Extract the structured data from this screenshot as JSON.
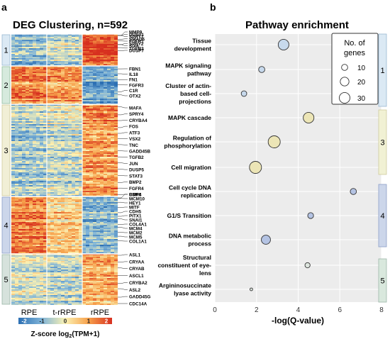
{
  "panel_a": {
    "letter": "a",
    "title": "DEG Clustering, n=592",
    "column_labels": [
      "RPE",
      "t-rRPE",
      "rRPE"
    ],
    "cluster_labels": [
      "1",
      "2",
      "3",
      "4",
      "5"
    ],
    "genes": [
      [
        "MMP9",
        "DUSP1",
        "SPRY1",
        "SMAD6",
        "FGFR1",
        "SPRY2",
        "SIX6",
        "TGFB3",
        "DUSP7"
      ],
      [
        "FBN1",
        "IL18",
        "FN1",
        "FGFR3",
        "C1R",
        "OTX2"
      ],
      [
        "MAFA",
        "SPRY4",
        "CRYBA4",
        "FOS",
        "ATF3",
        "VSX2",
        "TNC",
        "GADD45B",
        "TGFB2",
        "JUN",
        "DUSP5",
        "STAT3",
        "BMP2",
        "FGFR4",
        "BMP4"
      ],
      [
        "CDK6",
        "MCM10",
        "HEY1",
        "MITF",
        "CDH5",
        "PITX1",
        "SNAI1",
        "COL4A1",
        "MCM4",
        "MCM2",
        "MCM5",
        "COL1A1"
      ],
      [
        "ASL1",
        "CRYAA",
        "CRYAB",
        "ASCL1",
        "CRYBA2",
        "ASL2",
        "GADD45G",
        "CDC14A"
      ]
    ],
    "colorbar": {
      "ticks": [
        "-2",
        "-1",
        "0",
        "1",
        "2"
      ],
      "label_prefix": "Z-score log",
      "label_sub": "2",
      "label_suffix": "(TPM+1)",
      "colors": [
        "#2c6fb3",
        "#7fb4d8",
        "#fbf2b4",
        "#f7a04a",
        "#d7301f"
      ]
    }
  },
  "panel_b": {
    "letter": "b",
    "title": "Pathway enrichment",
    "legend_title_1": "No. of",
    "legend_title_2": "genes",
    "cluster_labels": [
      "1",
      "3",
      "4",
      "5"
    ],
    "cluster_colors": [
      "#dbe9f4",
      "#f1f1d4",
      "#ccd6ea",
      "#d9e8dd"
    ]
  },
  "chart_data": {
    "type": "scatter",
    "title": "Pathway enrichment",
    "xlabel": "-log(Q-value)",
    "ylabel": "",
    "xlim": [
      0,
      8
    ],
    "xticks": [
      0,
      2,
      4,
      6,
      8
    ],
    "grid": true,
    "legend_placement": "top-right",
    "size_legend": [
      10,
      20,
      30
    ],
    "points": [
      {
        "pathway": "Tissue development",
        "x": 3.3,
        "genes": 30,
        "color": "#c7d9ec",
        "cluster": "1"
      },
      {
        "pathway": "MAPK signaling pathway",
        "x": 2.25,
        "genes": 10,
        "color": "#c7d9ec",
        "cluster": "1"
      },
      {
        "pathway": "Cluster of actin-based cell-projections",
        "x": 1.4,
        "genes": 8,
        "color": "#c7d9ec",
        "cluster": "1"
      },
      {
        "pathway": "MAPK cascade",
        "x": 4.5,
        "genes": 30,
        "color": "#ece5b6",
        "cluster": "3"
      },
      {
        "pathway": "Regulation of phosphorylation",
        "x": 2.85,
        "genes": 38,
        "color": "#ece5b6",
        "cluster": "3"
      },
      {
        "pathway": "Cell migration",
        "x": 1.95,
        "genes": 38,
        "color": "#ece5b6",
        "cluster": "3"
      },
      {
        "pathway": "Cell cycle DNA replication",
        "x": 6.65,
        "genes": 10,
        "color": "#b4c3e3",
        "cluster": "4"
      },
      {
        "pathway": "G1/S Transition",
        "x": 4.6,
        "genes": 9,
        "color": "#b4c3e3",
        "cluster": "4"
      },
      {
        "pathway": "DNA metabolic process",
        "x": 2.45,
        "genes": 22,
        "color": "#b4c3e3",
        "cluster": "4"
      },
      {
        "pathway": "Structural constituent of eye-lens",
        "x": 4.45,
        "genes": 7,
        "color": "#dde5de",
        "cluster": "5"
      },
      {
        "pathway": "Argininosuccinate lyase activity",
        "x": 1.75,
        "genes": 2,
        "color": "#dde5de",
        "cluster": "5"
      }
    ],
    "pathway_labels": [
      [
        "Tissue",
        "development"
      ],
      [
        "MAPK signaling",
        "pathway"
      ],
      [
        "Cluster of actin-",
        "based cell-",
        "projections"
      ],
      [
        "MAPK cascade"
      ],
      [
        "Regulation of",
        "phosphorylation"
      ],
      [
        "Cell migration"
      ],
      [
        "Cell cycle DNA",
        "replication"
      ],
      [
        "G1/S Transition"
      ],
      [
        "DNA metabolic",
        "process"
      ],
      [
        "Structural",
        "constituent of eye-",
        "lens"
      ],
      [
        "Argininosuccinate",
        "lyase activity"
      ]
    ]
  }
}
